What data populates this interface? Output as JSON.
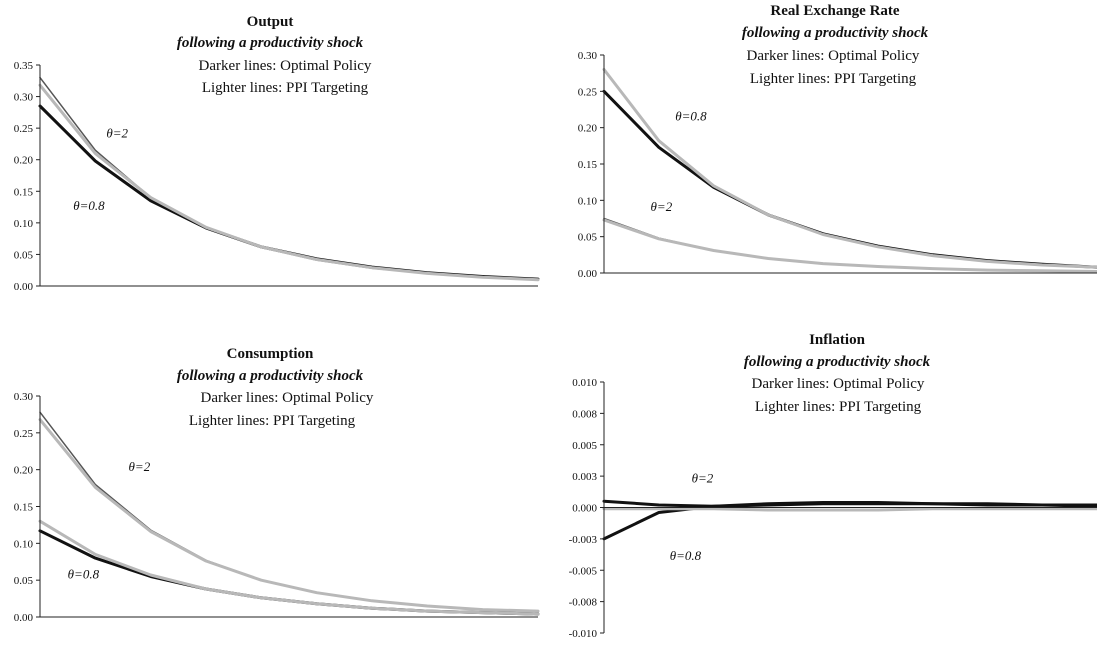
{
  "chart_data": [
    {
      "type": "line",
      "title": "Output",
      "subtitle": "following a productivity shock",
      "notes": [
        "Darker lines: Optimal Policy",
        "Lighter lines: PPI Targeting"
      ],
      "ylim": [
        0,
        0.35
      ],
      "yticks": [
        "0.00",
        "0.05",
        "0.10",
        "0.15",
        "0.20",
        "0.25",
        "0.30",
        "0.35"
      ],
      "x": [
        1,
        2,
        3,
        4,
        5,
        6,
        7,
        8,
        9,
        10
      ],
      "series": [
        {
          "color": "#111111",
          "width": 3,
          "values": [
            0.285,
            0.198,
            0.135,
            0.092,
            0.062,
            0.043,
            0.03,
            0.021,
            0.015,
            0.011
          ]
        },
        {
          "color": "#555555",
          "width": 1.5,
          "values": [
            0.33,
            0.215,
            0.14,
            0.092,
            0.061,
            0.041,
            0.028,
            0.02,
            0.014,
            0.01
          ]
        },
        {
          "color": "#b8b8b8",
          "width": 3,
          "values": [
            0.318,
            0.21,
            0.14,
            0.093,
            0.062,
            0.042,
            0.029,
            0.02,
            0.014,
            0.01
          ]
        }
      ],
      "annotations": [
        {
          "text": "θ=2",
          "x": 2.2,
          "y": 0.235
        },
        {
          "text": "θ=0.8",
          "x": 1.6,
          "y": 0.12
        }
      ]
    },
    {
      "type": "line",
      "title": "Real Exchange Rate",
      "subtitle": "following a productivity shock",
      "notes": [
        "Darker lines: Optimal Policy",
        "Lighter lines: PPI Targeting"
      ],
      "ylim": [
        0,
        0.3
      ],
      "yticks": [
        "0.00",
        "0.05",
        "0.10",
        "0.15",
        "0.20",
        "0.25",
        "0.30"
      ],
      "x": [
        1,
        2,
        3,
        4,
        5,
        6,
        7,
        8,
        9,
        10
      ],
      "series": [
        {
          "color": "#111111",
          "width": 3,
          "values": [
            0.25,
            0.173,
            0.118,
            0.08,
            0.054,
            0.037,
            0.025,
            0.017,
            0.012,
            0.008
          ]
        },
        {
          "color": "#b8b8b8",
          "width": 3,
          "values": [
            0.28,
            0.182,
            0.12,
            0.08,
            0.053,
            0.036,
            0.024,
            0.016,
            0.011,
            0.008
          ]
        },
        {
          "color": "#555555",
          "width": 1.5,
          "values": [
            0.075,
            0.048,
            0.031,
            0.02,
            0.013,
            0.009,
            0.006,
            0.004,
            0.003,
            0.002
          ]
        },
        {
          "color": "#b8b8b8",
          "width": 3,
          "values": [
            0.073,
            0.047,
            0.031,
            0.02,
            0.013,
            0.009,
            0.006,
            0.004,
            0.003,
            0.002
          ]
        }
      ],
      "annotations": [
        {
          "text": "θ=0.8",
          "x": 2.3,
          "y": 0.21
        },
        {
          "text": "θ=2",
          "x": 1.85,
          "y": 0.085
        }
      ]
    },
    {
      "type": "line",
      "title": "Consumption",
      "subtitle": "following a productivity shock",
      "notes": [
        "Darker lines: Optimal Policy",
        "Lighter lines: PPI Targeting"
      ],
      "ylim": [
        0,
        0.3
      ],
      "yticks": [
        "0.00",
        "0.05",
        "0.10",
        "0.15",
        "0.20",
        "0.25",
        "0.30"
      ],
      "x": [
        1,
        2,
        3,
        4,
        5,
        6,
        7,
        8,
        9,
        10
      ],
      "series": [
        {
          "color": "#555555",
          "width": 1.5,
          "values": [
            0.278,
            0.18,
            0.118,
            0.077,
            0.05,
            0.033,
            0.022,
            0.015,
            0.01,
            0.007
          ]
        },
        {
          "color": "#b8b8b8",
          "width": 3,
          "values": [
            0.268,
            0.176,
            0.116,
            0.076,
            0.05,
            0.033,
            0.022,
            0.015,
            0.01,
            0.008
          ]
        },
        {
          "color": "#111111",
          "width": 3,
          "values": [
            0.117,
            0.08,
            0.055,
            0.038,
            0.026,
            0.018,
            0.012,
            0.008,
            0.006,
            0.004
          ]
        },
        {
          "color": "#b8b8b8",
          "width": 3,
          "values": [
            0.13,
            0.085,
            0.057,
            0.038,
            0.026,
            0.018,
            0.012,
            0.008,
            0.006,
            0.004
          ]
        }
      ],
      "annotations": [
        {
          "text": "θ=2",
          "x": 2.6,
          "y": 0.198
        },
        {
          "text": "θ=0.8",
          "x": 1.5,
          "y": 0.052
        }
      ]
    },
    {
      "type": "line",
      "title": "Inflation",
      "subtitle": "following a productivity shock",
      "notes": [
        "Darker lines: Optimal Policy",
        "Lighter lines: PPI Targeting"
      ],
      "ylim": [
        -0.01,
        0.01
      ],
      "yticks": [
        "-0.010",
        "-0.008",
        "-0.005",
        "-0.003",
        "0.000",
        "0.003",
        "0.005",
        "0.008",
        "0.010"
      ],
      "x": [
        1,
        2,
        3,
        4,
        5,
        6,
        7,
        8,
        9,
        10
      ],
      "series": [
        {
          "color": "#111111",
          "width": 3,
          "values": [
            0.0005,
            0.0002,
            0.0001,
            0.0002,
            0.0003,
            0.0003,
            0.0003,
            0.0002,
            0.0002,
            0.0001
          ]
        },
        {
          "color": "#111111",
          "width": 3,
          "values": [
            -0.0025,
            -0.0004,
            0.0001,
            0.0003,
            0.0004,
            0.0004,
            0.0003,
            0.0003,
            0.0002,
            0.0002
          ]
        },
        {
          "color": "#b8b8b8",
          "width": 3,
          "values": [
            -0.0001,
            -0.0001,
            -0.0001,
            -0.0002,
            -0.0002,
            -0.0002,
            -0.0001,
            -0.0001,
            -0.0001,
            -0.0001
          ]
        }
      ],
      "annotations": [
        {
          "text": "θ=2",
          "x": 2.6,
          "y": 0.002
        },
        {
          "text": "θ=0.8",
          "x": 2.2,
          "y": -0.0042
        }
      ]
    }
  ]
}
